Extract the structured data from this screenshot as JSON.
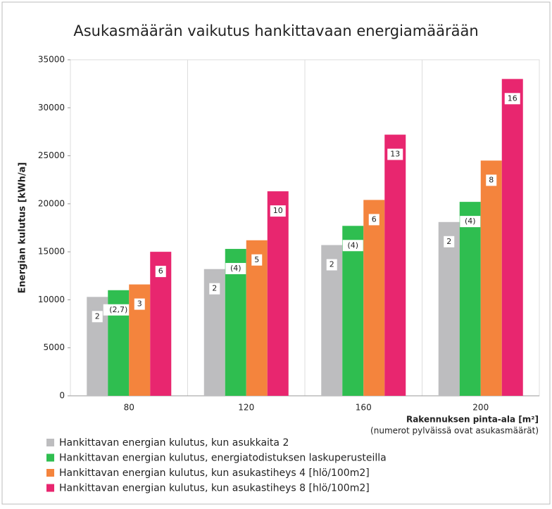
{
  "chart_data": {
    "type": "bar",
    "title": "Asukasmäärän vaikutus hankittavaan energiamäärään",
    "x_label": "Rakennuksen pinta-ala [m²]",
    "x_note": "(numerot pylväissä ovat asukasmäärät)",
    "y_label": "Energian kulutus [kWh/a]",
    "categories": [
      "80",
      "120",
      "160",
      "200"
    ],
    "ylim": [
      0,
      35000
    ],
    "yticks": [
      0,
      5000,
      10000,
      15000,
      20000,
      25000,
      30000,
      35000
    ],
    "series": [
      {
        "name": "Hankittavan energian kulutus, kun asukkaita 2",
        "color": "#bdbdbf",
        "values": [
          10300,
          13200,
          15700,
          18100
        ],
        "labels": [
          "2",
          "2",
          "2",
          "2"
        ]
      },
      {
        "name": "Hankittavan energian kulutus, energiatodistuksen laskuperusteilla",
        "color": "#2fbe50",
        "values": [
          11000,
          15300,
          17700,
          20200
        ],
        "labels": [
          "(2,7)",
          "(4)",
          "(4)",
          "(4)"
        ]
      },
      {
        "name": "Hankittavan energian kulutus, kun asukastiheys 4 [hlö/100m2]",
        "color": "#f4843d",
        "values": [
          11600,
          16200,
          20400,
          24500
        ],
        "labels": [
          "3",
          "5",
          "6",
          "8"
        ]
      },
      {
        "name": "Hankittavan energian kulutus, kun asukastiheys 8 [hlö/100m2]",
        "color": "#e8266f",
        "values": [
          15000,
          21300,
          27200,
          33000
        ],
        "labels": [
          "6",
          "10",
          "13",
          "16"
        ]
      }
    ]
  }
}
